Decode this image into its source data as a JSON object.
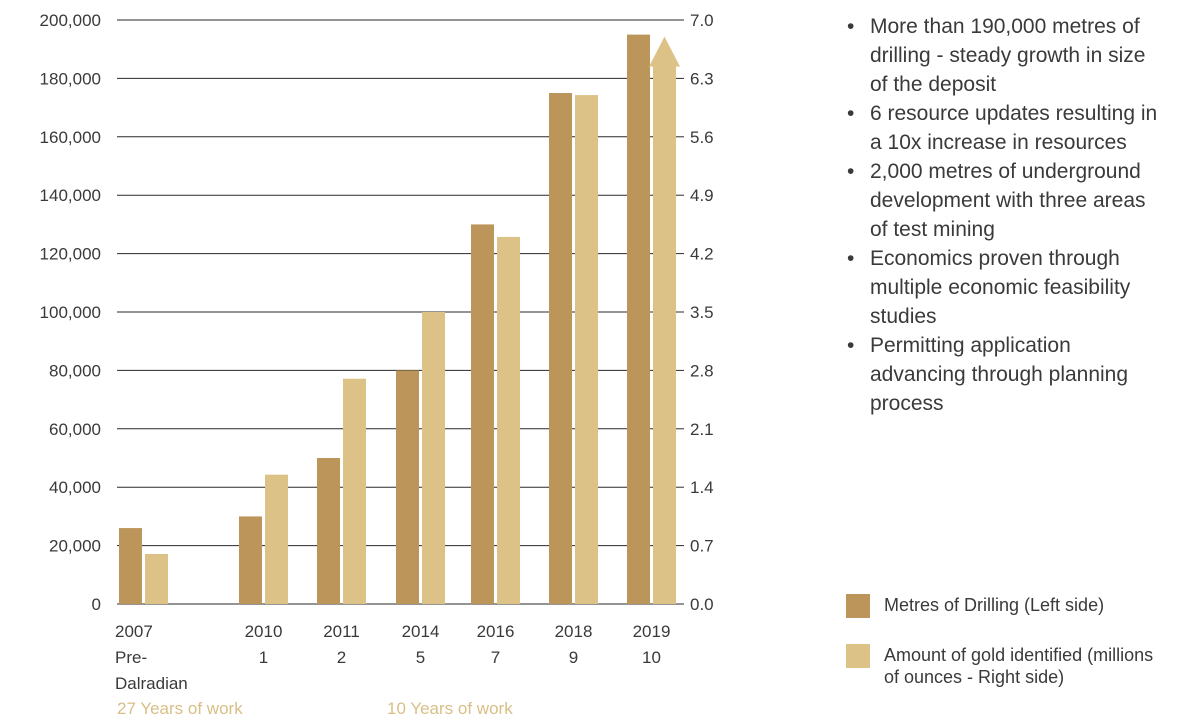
{
  "chart_data": {
    "type": "bar",
    "categories": [
      {
        "year": "2007",
        "sub": "Pre-",
        "sub2": "Dalradian"
      },
      {
        "year": "2010",
        "sub": "1",
        "sub2": ""
      },
      {
        "year": "2011",
        "sub": "2",
        "sub2": ""
      },
      {
        "year": "2014",
        "sub": "5",
        "sub2": ""
      },
      {
        "year": "2016",
        "sub": "7",
        "sub2": ""
      },
      {
        "year": "2018",
        "sub": "9",
        "sub2": ""
      },
      {
        "year": "2019",
        "sub": "10",
        "sub2": ""
      }
    ],
    "series": [
      {
        "name": "Metres of Drilling (Left side)",
        "axis": "left",
        "color": "#bc955a",
        "values": [
          26000,
          30000,
          50000,
          80000,
          130000,
          175000,
          195000
        ]
      },
      {
        "name": "Amount of gold identified (millions of ounces - Right side)",
        "axis": "right",
        "color": "#dcc287",
        "values": [
          0.6,
          1.55,
          2.7,
          3.5,
          4.4,
          6.1,
          6.8
        ]
      }
    ],
    "left_axis": {
      "min": 0,
      "max": 200000,
      "ticks": [
        "0",
        "20,000",
        "40,000",
        "60,000",
        "80,000",
        "100,000",
        "120,000",
        "140,000",
        "160,000",
        "180,000",
        "200,000"
      ]
    },
    "right_axis": {
      "min": 0,
      "max": 7.0,
      "ticks": [
        "0.0",
        "0.7",
        "1.4",
        "2.1",
        "2.8",
        "3.5",
        "4.2",
        "4.9",
        "5.6",
        "6.3",
        "7.0"
      ]
    },
    "last_gold_bar_arrow": true,
    "grid": "horizontal",
    "era_labels": [
      "27 Years of work",
      "10 Years of work"
    ]
  },
  "bullets": [
    "More than 190,000 metres of drilling - steady growth in size of the deposit",
    "6 resource updates resulting in a 10x increase in resources",
    "2,000 metres of underground development with three areas of test mining",
    "Economics proven through multiple economic feasibility studies",
    "Permitting application advancing through planning process"
  ],
  "legend": [
    {
      "label": "Metres of Drilling (Left side)",
      "color": "#bc955a"
    },
    {
      "label": "Amount of gold identified (millions of ounces - Right side)",
      "color": "#dcc287"
    }
  ]
}
